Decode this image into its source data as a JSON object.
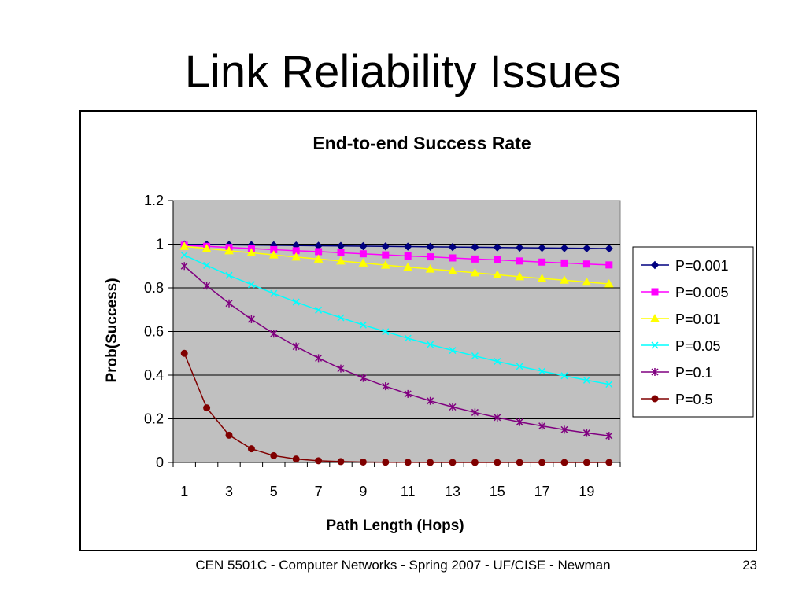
{
  "slide": {
    "title": "Link Reliability Issues",
    "footer": "CEN 5501C - Computer Networks - Spring 2007 - UF/CISE - Newman",
    "page_number": "23"
  },
  "chart_data": {
    "type": "line",
    "title": "End-to-end Success Rate",
    "xlabel": "Path Length (Hops)",
    "ylabel": "Prob(Success)",
    "x": [
      1,
      2,
      3,
      4,
      5,
      6,
      7,
      8,
      9,
      10,
      11,
      12,
      13,
      14,
      15,
      16,
      17,
      18,
      19,
      20
    ],
    "x_tick_labels": [
      "1",
      "3",
      "5",
      "7",
      "9",
      "11",
      "13",
      "15",
      "17",
      "19"
    ],
    "ylim": [
      0,
      1.2
    ],
    "y_ticks": [
      0,
      0.2,
      0.4,
      0.6,
      0.8,
      1,
      1.2
    ],
    "y_tick_labels": [
      "0",
      "0.2",
      "0.4",
      "0.6",
      "0.8",
      "1",
      "1.2"
    ],
    "grid": "horizontal",
    "plot_background": "#c0c0c0",
    "legend_position": "right",
    "series": [
      {
        "name": "P=0.001",
        "color": "#000080",
        "marker": "diamond",
        "values": [
          0.999,
          0.998,
          0.997,
          0.996,
          0.995,
          0.994,
          0.993,
          0.992,
          0.991,
          0.99,
          0.989,
          0.988,
          0.987,
          0.986,
          0.985,
          0.984,
          0.983,
          0.982,
          0.981,
          0.98
        ]
      },
      {
        "name": "P=0.005",
        "color": "#ff00ff",
        "marker": "square",
        "values": [
          0.995,
          0.99,
          0.985,
          0.98,
          0.975,
          0.97,
          0.966,
          0.961,
          0.956,
          0.951,
          0.946,
          0.942,
          0.937,
          0.932,
          0.928,
          0.923,
          0.918,
          0.914,
          0.909,
          0.905
        ]
      },
      {
        "name": "P=0.01",
        "color": "#ffff00",
        "marker": "triangle",
        "values": [
          0.99,
          0.98,
          0.97,
          0.961,
          0.951,
          0.941,
          0.932,
          0.923,
          0.914,
          0.904,
          0.895,
          0.886,
          0.878,
          0.869,
          0.86,
          0.851,
          0.843,
          0.835,
          0.826,
          0.818
        ]
      },
      {
        "name": "P=0.05",
        "color": "#00ffff",
        "marker": "x",
        "values": [
          0.95,
          0.903,
          0.857,
          0.815,
          0.774,
          0.735,
          0.698,
          0.663,
          0.63,
          0.599,
          0.569,
          0.54,
          0.513,
          0.488,
          0.463,
          0.44,
          0.418,
          0.397,
          0.377,
          0.358
        ]
      },
      {
        "name": "P=0.1",
        "color": "#800080",
        "marker": "star",
        "values": [
          0.9,
          0.81,
          0.729,
          0.656,
          0.59,
          0.531,
          0.478,
          0.43,
          0.387,
          0.349,
          0.314,
          0.282,
          0.254,
          0.229,
          0.206,
          0.185,
          0.167,
          0.15,
          0.135,
          0.122
        ]
      },
      {
        "name": "P=0.5",
        "color": "#800000",
        "marker": "circle",
        "values": [
          0.5,
          0.25,
          0.125,
          0.0625,
          0.0313,
          0.0156,
          0.0078,
          0.0039,
          0.002,
          0.001,
          0.0005,
          0.0002,
          0.0001,
          0.0001,
          0.0,
          0.0,
          0.0,
          0.0,
          0.0,
          0.0
        ]
      }
    ]
  }
}
